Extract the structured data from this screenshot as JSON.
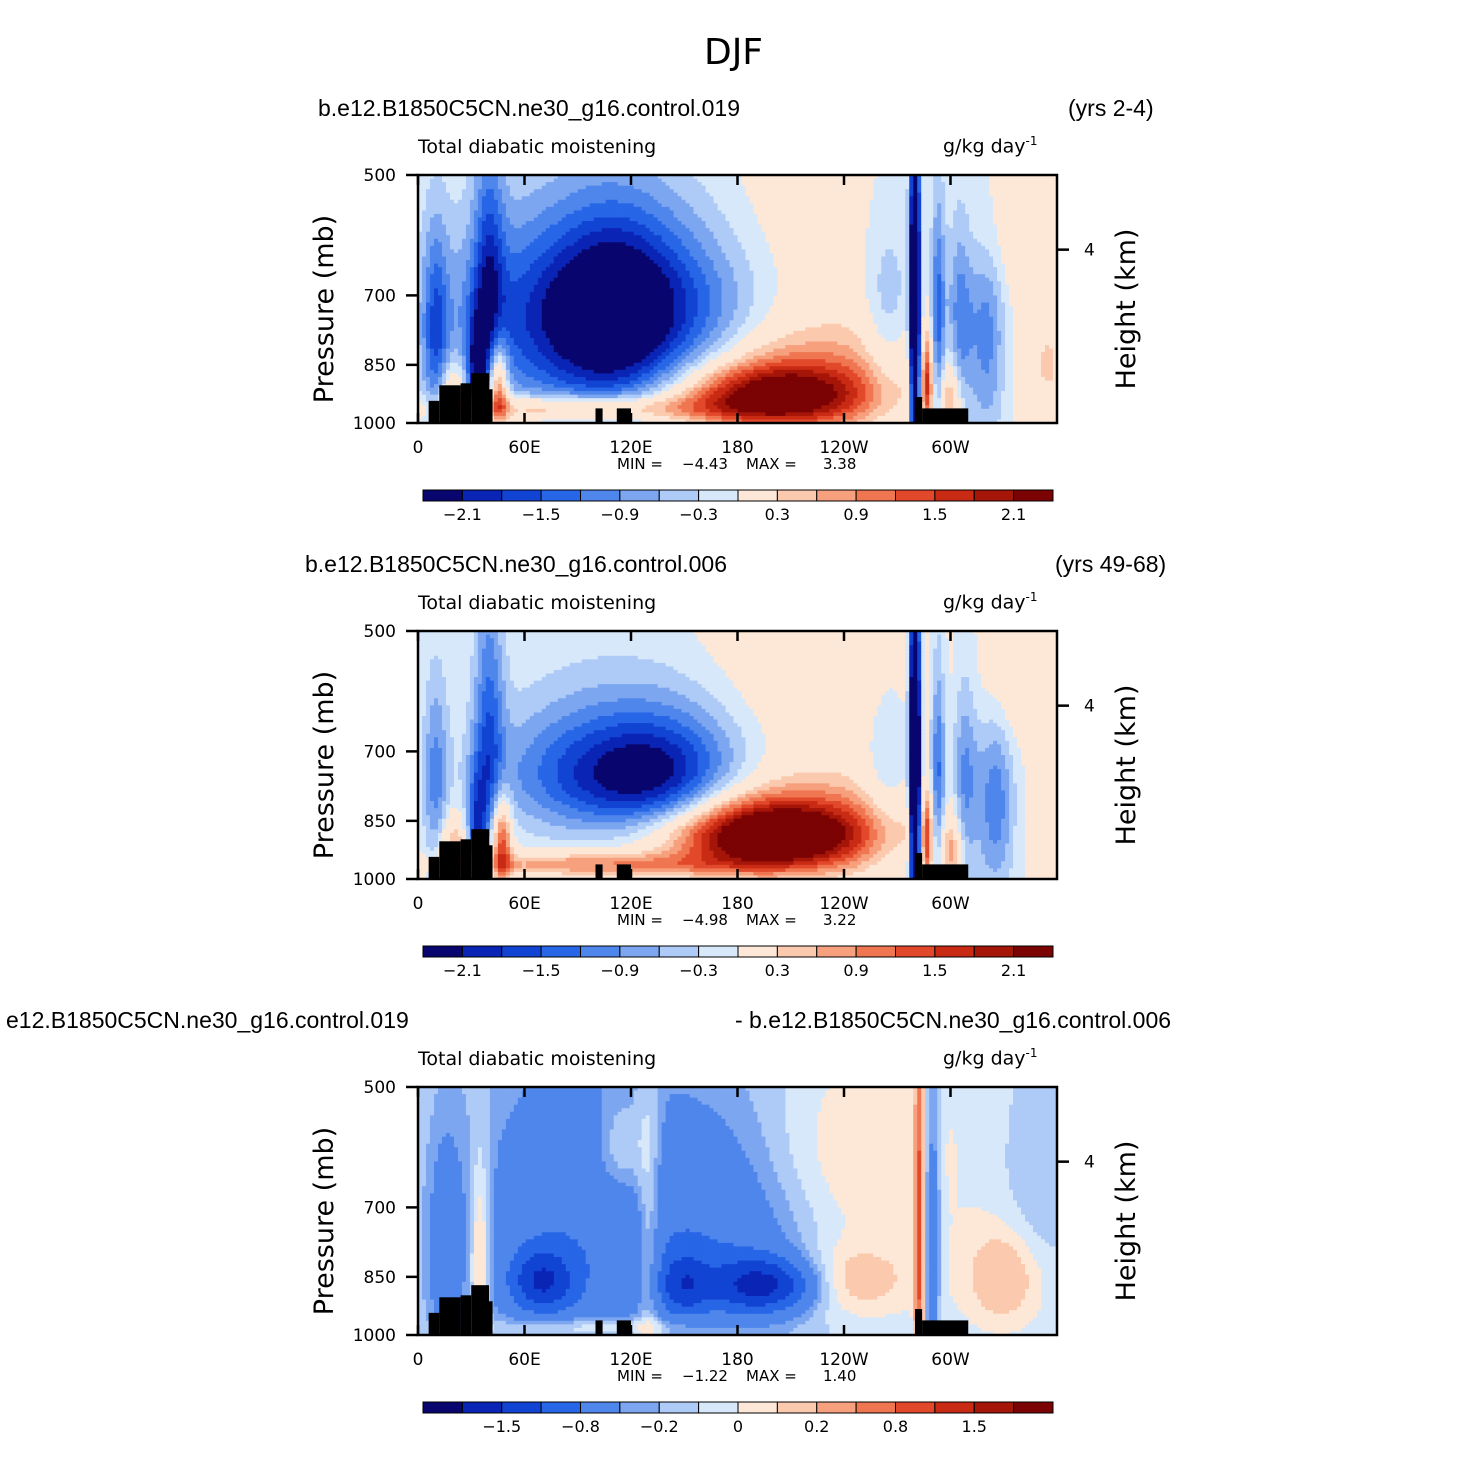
{
  "title": "DJF",
  "colors": {
    "palette": [
      "#08066e",
      "#0a24b5",
      "#1244d4",
      "#2766e6",
      "#4f86ec",
      "#7da6f0",
      "#aecaf6",
      "#d8e8fb",
      "#fde8d7",
      "#fbc9ad",
      "#f6a07d",
      "#ef7650",
      "#e2482a",
      "#c92a14",
      "#a51508",
      "#7c0303"
    ],
    "topography": "#000000"
  },
  "chart_data": [
    {
      "type": "heatmap",
      "case_left": "b.e12.B1850C5CN.ne30_g16.control.019",
      "case_right": "(yrs 2-4)",
      "field": "Total diabatic moistening",
      "units": "g/kg day",
      "units_exponent": "-1",
      "ylabel": "Pressure (mb)",
      "y2label": "Height (km)",
      "y_ticks": [
        "500",
        "700",
        "850",
        "1000"
      ],
      "y2_ticks": [
        "4"
      ],
      "x_ticks": [
        "0",
        "60E",
        "120E",
        "180",
        "120W",
        "60W"
      ],
      "xlim": [
        0,
        360
      ],
      "ylim": [
        1000,
        500
      ],
      "min_label": "MIN =",
      "min_value": "−4.43",
      "max_label": "MAX =",
      "max_value": "3.38",
      "colorbar_labels": [
        "−2.1",
        "−1.5",
        "−0.9",
        "−0.3",
        "0.3",
        "0.9",
        "1.5",
        "2.1"
      ],
      "features": [
        {
          "lon": 200,
          "p": 930,
          "amp": 3.0,
          "slon": 40,
          "sp": 60
        },
        {
          "lon": 210,
          "p": 830,
          "amp": 0.8,
          "slon": 70,
          "sp": 80
        },
        {
          "lon": 75,
          "p": 750,
          "amp": -1.7,
          "slon": 45,
          "sp": 150
        },
        {
          "lon": 150,
          "p": 760,
          "amp": -1.4,
          "slon": 35,
          "sp": 150
        },
        {
          "lon": 110,
          "p": 740,
          "amp": -1.6,
          "slon": 25,
          "sp": 140
        },
        {
          "lon": 40,
          "p": 700,
          "amp": -1.3,
          "slon": 6,
          "sp": 200
        },
        {
          "lon": 10,
          "p": 780,
          "amp": -1.2,
          "slon": 5,
          "sp": 150
        },
        {
          "lon": 33,
          "p": 880,
          "amp": -1.5,
          "slon": 4,
          "sp": 100
        },
        {
          "lon": 45,
          "p": 900,
          "amp": 2.2,
          "slon": 4,
          "sp": 80
        },
        {
          "lon": 20,
          "p": 920,
          "amp": 1.0,
          "slon": 6,
          "sp": 60
        },
        {
          "lon": 90,
          "p": 960,
          "amp": 1.4,
          "slon": 55,
          "sp": 25
        },
        {
          "lon": 280,
          "p": 740,
          "amp": -4.4,
          "slon": 2,
          "sp": 260
        },
        {
          "lon": 293,
          "p": 780,
          "amp": -1.6,
          "slon": 3,
          "sp": 180
        },
        {
          "lon": 305,
          "p": 780,
          "amp": -1.2,
          "slon": 5,
          "sp": 160
        },
        {
          "lon": 320,
          "p": 800,
          "amp": -1.3,
          "slon": 8,
          "sp": 150
        },
        {
          "lon": 265,
          "p": 760,
          "amp": -0.7,
          "slon": 10,
          "sp": 150
        },
        {
          "lon": 287,
          "p": 900,
          "amp": 1.5,
          "slon": 2,
          "sp": 80
        },
        {
          "lon": 300,
          "p": 930,
          "amp": 1.0,
          "slon": 5,
          "sp": 60
        },
        {
          "lon": 340,
          "p": 600,
          "amp": 0.4,
          "slon": 20,
          "sp": 80
        },
        {
          "lon": 200,
          "p": 600,
          "amp": 0.3,
          "slon": 40,
          "sp": 120
        },
        {
          "lon": 355,
          "p": 850,
          "amp": 0.6,
          "slon": 5,
          "sp": 60
        }
      ]
    },
    {
      "type": "heatmap",
      "case_left": "b.e12.B1850C5CN.ne30_g16.control.006",
      "case_right": "(yrs 49-68)",
      "field": "Total diabatic moistening",
      "units": "g/kg day",
      "units_exponent": "-1",
      "ylabel": "Pressure (mb)",
      "y2label": "Height (km)",
      "y_ticks": [
        "500",
        "700",
        "850",
        "1000"
      ],
      "y2_ticks": [
        "4"
      ],
      "x_ticks": [
        "0",
        "60E",
        "120E",
        "180",
        "120W",
        "60W"
      ],
      "xlim": [
        0,
        360
      ],
      "ylim": [
        1000,
        500
      ],
      "min_label": "MIN =",
      "min_value": "−4.98",
      "max_label": "MAX =",
      "max_value": "3.22",
      "colorbar_labels": [
        "−2.1",
        "−1.5",
        "−0.9",
        "−0.3",
        "0.3",
        "0.9",
        "1.5",
        "2.1"
      ],
      "features": [
        {
          "lon": 200,
          "p": 890,
          "amp": 3.1,
          "slon": 38,
          "sp": 60
        },
        {
          "lon": 200,
          "p": 840,
          "amp": 0.9,
          "slon": 65,
          "sp": 80
        },
        {
          "lon": 100,
          "p": 760,
          "amp": -1.3,
          "slon": 40,
          "sp": 90
        },
        {
          "lon": 140,
          "p": 760,
          "amp": -1.4,
          "slon": 30,
          "sp": 90
        },
        {
          "lon": 120,
          "p": 680,
          "amp": -0.6,
          "slon": 50,
          "sp": 120
        },
        {
          "lon": 40,
          "p": 680,
          "amp": -1.3,
          "slon": 6,
          "sp": 200
        },
        {
          "lon": 10,
          "p": 760,
          "amp": -1.0,
          "slon": 5,
          "sp": 150
        },
        {
          "lon": 33,
          "p": 880,
          "amp": -1.4,
          "slon": 4,
          "sp": 100
        },
        {
          "lon": 47,
          "p": 900,
          "amp": 2.0,
          "slon": 4,
          "sp": 80
        },
        {
          "lon": 20,
          "p": 920,
          "amp": 1.0,
          "slon": 6,
          "sp": 60
        },
        {
          "lon": 100,
          "p": 960,
          "amp": 1.2,
          "slon": 55,
          "sp": 22
        },
        {
          "lon": 280,
          "p": 740,
          "amp": -4.9,
          "slon": 2,
          "sp": 260
        },
        {
          "lon": 293,
          "p": 780,
          "amp": -1.5,
          "slon": 3,
          "sp": 180
        },
        {
          "lon": 308,
          "p": 780,
          "amp": -1.1,
          "slon": 5,
          "sp": 160
        },
        {
          "lon": 325,
          "p": 820,
          "amp": -1.3,
          "slon": 8,
          "sp": 140
        },
        {
          "lon": 265,
          "p": 760,
          "amp": -0.6,
          "slon": 10,
          "sp": 150
        },
        {
          "lon": 287,
          "p": 900,
          "amp": 1.4,
          "slon": 2,
          "sp": 80
        },
        {
          "lon": 300,
          "p": 930,
          "amp": 1.0,
          "slon": 5,
          "sp": 60
        },
        {
          "lon": 340,
          "p": 580,
          "amp": 0.5,
          "slon": 15,
          "sp": 70
        },
        {
          "lon": 220,
          "p": 580,
          "amp": 0.4,
          "slon": 50,
          "sp": 110
        }
      ]
    },
    {
      "type": "heatmap",
      "case_left": "e12.B1850C5CN.ne30_g16.control.019",
      "case_right": "- b.e12.B1850C5CN.ne30_g16.control.006",
      "field": "Total diabatic moistening",
      "units": "g/kg day",
      "units_exponent": "-1",
      "ylabel": "Pressure (mb)",
      "y2label": "Height (km)",
      "y_ticks": [
        "500",
        "700",
        "850",
        "1000"
      ],
      "y2_ticks": [
        "4"
      ],
      "x_ticks": [
        "0",
        "60E",
        "120E",
        "180",
        "120W",
        "60W"
      ],
      "xlim": [
        0,
        360
      ],
      "ylim": [
        1000,
        500
      ],
      "min_label": "MIN =",
      "min_value": "−1.22",
      "max_label": "MAX =",
      "max_value": "1.40",
      "colorbar_labels": [
        "−1.5",
        "−0.8",
        "−0.2",
        "0",
        "0.2",
        "0.8",
        "1.5"
      ],
      "diff_scale": true,
      "features": [
        {
          "lon": 195,
          "p": 870,
          "amp": -1.1,
          "slon": 20,
          "sp": 45
        },
        {
          "lon": 70,
          "p": 860,
          "amp": -0.9,
          "slon": 12,
          "sp": 50
        },
        {
          "lon": 150,
          "p": 870,
          "amp": -0.7,
          "slon": 10,
          "sp": 50
        },
        {
          "lon": 170,
          "p": 750,
          "amp": -0.5,
          "slon": 40,
          "sp": 200
        },
        {
          "lon": 80,
          "p": 750,
          "amp": -0.45,
          "slon": 40,
          "sp": 250
        },
        {
          "lon": 130,
          "p": 760,
          "amp": 0.35,
          "slon": 5,
          "sp": 200
        },
        {
          "lon": 240,
          "p": 860,
          "amp": 0.3,
          "slon": 25,
          "sp": 60
        },
        {
          "lon": 230,
          "p": 620,
          "amp": 0.2,
          "slon": 45,
          "sp": 120
        },
        {
          "lon": 282,
          "p": 760,
          "amp": 1.3,
          "slon": 1.5,
          "sp": 250
        },
        {
          "lon": 290,
          "p": 760,
          "amp": -0.5,
          "slon": 3,
          "sp": 200
        },
        {
          "lon": 35,
          "p": 800,
          "amp": 0.4,
          "slon": 4,
          "sp": 150
        },
        {
          "lon": 15,
          "p": 800,
          "amp": -0.3,
          "slon": 8,
          "sp": 200
        },
        {
          "lon": 330,
          "p": 850,
          "amp": 0.3,
          "slon": 15,
          "sp": 80
        },
        {
          "lon": 350,
          "p": 650,
          "amp": -0.15,
          "slon": 15,
          "sp": 150
        },
        {
          "lon": 100,
          "p": 980,
          "amp": 0.3,
          "slon": 40,
          "sp": 20
        },
        {
          "lon": 115,
          "p": 600,
          "amp": 0.3,
          "slon": 10,
          "sp": 60
        }
      ]
    }
  ]
}
